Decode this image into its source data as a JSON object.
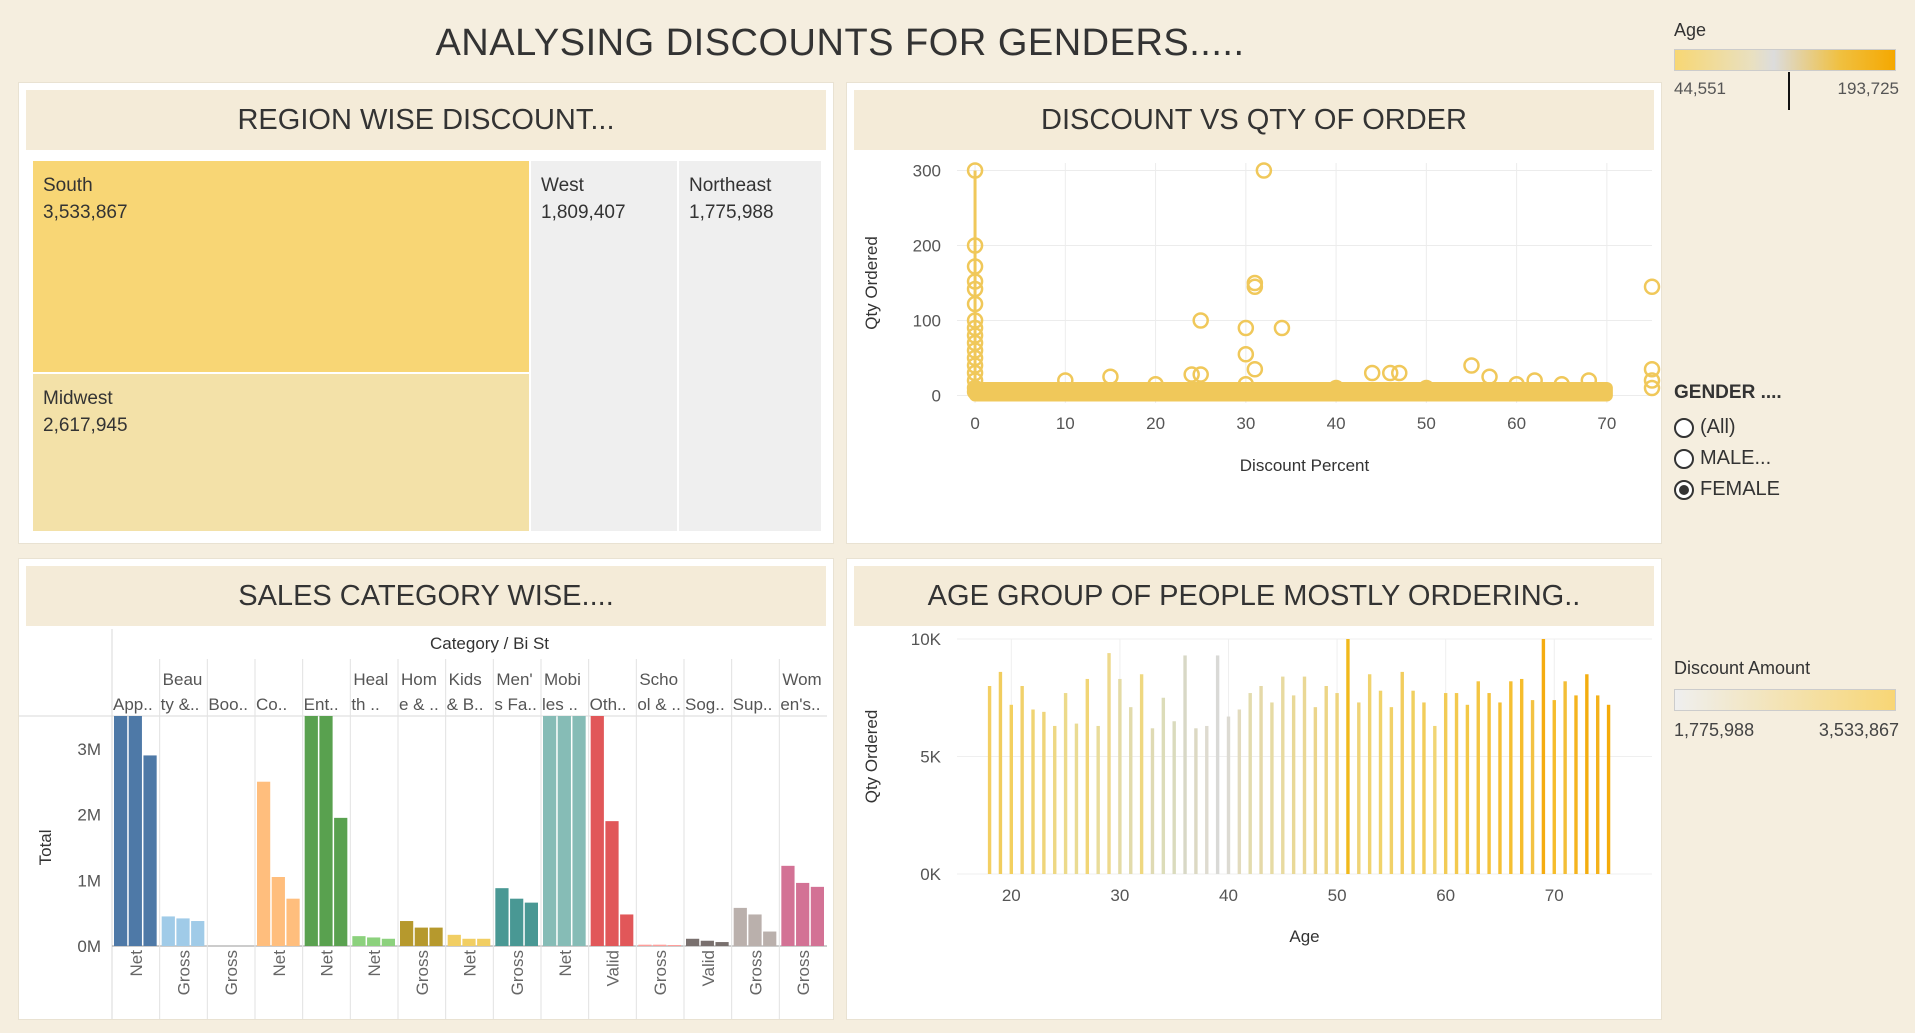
{
  "dashboard": {
    "title": "ANALYSING DISCOUNTS FOR GENDERS....."
  },
  "region_panel": {
    "title": "REGION WISE DISCOUNT...",
    "tiles": [
      {
        "name": "South",
        "value": "3,533,867",
        "color": "#f8d675"
      },
      {
        "name": "Midwest",
        "value": "2,617,945",
        "color": "#f3e1a8"
      },
      {
        "name": "West",
        "value": "1,809,407",
        "color": "#efefef"
      },
      {
        "name": "Northeast",
        "value": "1,775,988",
        "color": "#efefef"
      }
    ]
  },
  "scatter_panel": {
    "title": "DISCOUNT VS QTY OF ORDER",
    "chart_data": {
      "type": "scatter",
      "xlabel": "Discount Percent",
      "ylabel": "Qty Ordered",
      "xlim": [
        -2,
        75
      ],
      "ylim": [
        -10,
        310
      ],
      "xticks": [
        0,
        10,
        20,
        30,
        40,
        50,
        60,
        70
      ],
      "yticks": [
        0,
        100,
        200,
        300
      ],
      "grid": true,
      "color": "#f0c85a",
      "points": [
        [
          0,
          300
        ],
        [
          0,
          200
        ],
        [
          0,
          172
        ],
        [
          0,
          152
        ],
        [
          0,
          142
        ],
        [
          0,
          122
        ],
        [
          0,
          100
        ],
        [
          0,
          90
        ],
        [
          0,
          80
        ],
        [
          0,
          70
        ],
        [
          0,
          60
        ],
        [
          0,
          50
        ],
        [
          0,
          40
        ],
        [
          0,
          30
        ],
        [
          0,
          20
        ],
        [
          0,
          10
        ],
        [
          0,
          5
        ],
        [
          32,
          300
        ],
        [
          10,
          20
        ],
        [
          15,
          25
        ],
        [
          20,
          15
        ],
        [
          25,
          100
        ],
        [
          24,
          28
        ],
        [
          25,
          28
        ],
        [
          30,
          55
        ],
        [
          30,
          15
        ],
        [
          31,
          150
        ],
        [
          31,
          145
        ],
        [
          30,
          90
        ],
        [
          31,
          35
        ],
        [
          34,
          90
        ],
        [
          40,
          10
        ],
        [
          44,
          30
        ],
        [
          46,
          30
        ],
        [
          47,
          30
        ],
        [
          50,
          10
        ],
        [
          55,
          40
        ],
        [
          57,
          25
        ],
        [
          60,
          15
        ],
        [
          62,
          20
        ],
        [
          65,
          15
        ],
        [
          68,
          20
        ],
        [
          75,
          145
        ],
        [
          75,
          35
        ],
        [
          75,
          20
        ],
        [
          75,
          10
        ]
      ],
      "dense_band": {
        "x_from": 0,
        "x_to": 70,
        "y_from": 0,
        "y_to": 10
      }
    }
  },
  "category_panel": {
    "title": "SALES CATEGORY WISE....",
    "chart_data": {
      "type": "bar",
      "header_title": "Category / Bi St",
      "ylabel": "Total",
      "yticks": [
        "3M",
        "2M",
        "1M",
        "0M"
      ],
      "ylim": [
        0,
        3500000
      ],
      "categories": [
        {
          "label1": "",
          "label2": "App..",
          "color": "#4e79a7",
          "status": "Net",
          "values": [
            3500000,
            3500000,
            2900000
          ]
        },
        {
          "label1": "Beau",
          "label2": "ty &..",
          "color": "#a0cbe8",
          "status": "Gross",
          "values": [
            450000,
            420000,
            380000
          ]
        },
        {
          "label1": "",
          "label2": "Boo..",
          "color": "#a0cbe8",
          "status": "Gross",
          "values": [
            0,
            0,
            0
          ]
        },
        {
          "label1": "",
          "label2": "Co..",
          "color": "#ffbe7d",
          "status": "Net",
          "values": [
            2500000,
            1050000,
            720000
          ]
        },
        {
          "label1": "",
          "label2": "Ent..",
          "color": "#59a14f",
          "status": "Net",
          "values": [
            3500000,
            3500000,
            1950000
          ]
        },
        {
          "label1": "Heal",
          "label2": "th ..",
          "color": "#8cd17d",
          "status": "Net",
          "values": [
            150000,
            130000,
            110000
          ]
        },
        {
          "label1": "Hom",
          "label2": "e & ..",
          "color": "#b6992d",
          "status": "Gross",
          "values": [
            380000,
            280000,
            280000
          ]
        },
        {
          "label1": "Kids",
          "label2": "& B..",
          "color": "#f1ce63",
          "status": "Net",
          "values": [
            170000,
            110000,
            110000
          ]
        },
        {
          "label1": "Men'",
          "label2": "s Fa..",
          "color": "#499894",
          "status": "Gross",
          "values": [
            880000,
            720000,
            660000
          ]
        },
        {
          "label1": "Mobi",
          "label2": "les ..",
          "color": "#86bcb6",
          "status": "Net",
          "values": [
            3500000,
            3500000,
            3500000
          ]
        },
        {
          "label1": "",
          "label2": "Oth..",
          "color": "#e15759",
          "status": "Valid",
          "values": [
            3500000,
            1900000,
            480000
          ]
        },
        {
          "label1": "Scho",
          "label2": "ol & ..",
          "color": "#ff9d9a",
          "status": "Gross",
          "values": [
            20000,
            20000,
            15000
          ]
        },
        {
          "label1": "",
          "label2": "Sog..",
          "color": "#79706e",
          "status": "Valid",
          "values": [
            110000,
            80000,
            60000
          ]
        },
        {
          "label1": "",
          "label2": "Sup..",
          "color": "#bab0ac",
          "status": "Gross",
          "values": [
            580000,
            480000,
            220000
          ]
        },
        {
          "label1": "Wom",
          "label2": "en's..",
          "color": "#d37295",
          "status": "Gross",
          "values": [
            1220000,
            960000,
            900000
          ]
        }
      ]
    }
  },
  "age_panel": {
    "title": "AGE GROUP OF PEOPLE MOSTLY ORDERING..",
    "chart_data": {
      "type": "bar",
      "xlabel": "Age",
      "ylabel": "Qty Ordered",
      "xlim": [
        15,
        79
      ],
      "ylim": [
        0,
        10000
      ],
      "xticks": [
        20,
        30,
        40,
        50,
        60,
        70
      ],
      "yticks": [
        {
          "v": 10000,
          "t": "10K"
        },
        {
          "v": 5000,
          "t": "5K"
        },
        {
          "v": 0,
          "t": "0K"
        }
      ],
      "ages": [
        18,
        19,
        20,
        21,
        22,
        23,
        24,
        25,
        26,
        27,
        28,
        29,
        30,
        31,
        32,
        33,
        34,
        35,
        36,
        37,
        38,
        39,
        40,
        41,
        42,
        43,
        44,
        45,
        46,
        47,
        48,
        49,
        50,
        51,
        52,
        53,
        54,
        55,
        56,
        57,
        58,
        59,
        60,
        61,
        62,
        63,
        64,
        65,
        66,
        67,
        68,
        69,
        70,
        71,
        72,
        73,
        74,
        75
      ],
      "values": [
        8000,
        8600,
        7200,
        8000,
        7000,
        6900,
        6300,
        7700,
        6400,
        8300,
        6300,
        9400,
        8300,
        7100,
        8500,
        6200,
        7500,
        6500,
        9300,
        6200,
        6300,
        9300,
        6700,
        7000,
        7700,
        8000,
        7300,
        8400,
        7600,
        8400,
        7100,
        8000,
        7700,
        10000,
        7300,
        8500,
        7800,
        7100,
        8600,
        7800,
        7300,
        6300,
        7700,
        7700,
        7200,
        8200,
        7700,
        7300,
        8200,
        8300,
        7400,
        10000,
        7400,
        8200,
        7600,
        8500,
        7600,
        7200
      ],
      "colors": [
        "#f3cf63",
        "#f1cd5e",
        "#f3d05f",
        "#f1d16b",
        "#f0d473",
        "#efd57a",
        "#eed883",
        "#ecda8a",
        "#eadb92",
        "#f1d575",
        "#e9dc9a",
        "#eed98c",
        "#e4dba5",
        "#e2dbab",
        "#efd880",
        "#dfdab3",
        "#dcdcb9",
        "#dadbbd",
        "#d8d8c6",
        "#dcd9c3",
        "#dedbd0",
        "#d9d9d6",
        "#dcdad2",
        "#e2dbbe",
        "#e3dcae",
        "#e5d9a8",
        "#e6dba4",
        "#e8daa0",
        "#e9d998",
        "#ead895",
        "#ebd58b",
        "#ecd585",
        "#eed47e",
        "#f1b91c",
        "#efd377",
        "#f0d36f",
        "#f1d36a",
        "#f1d168",
        "#f2cd5e",
        "#f0d060",
        "#f2cd5a",
        "#f1d574",
        "#f2cb55",
        "#f3c94e",
        "#f3c846",
        "#f4c542",
        "#f4c23d",
        "#f5c036",
        "#f5bf32",
        "#f6bd2c",
        "#f3c243",
        "#f5ac10",
        "#f6bd2b",
        "#f3be36",
        "#f5b41e",
        "#f3ad0f",
        "#f4b21b",
        "#f5ab0a"
      ]
    }
  },
  "age_legend": {
    "title": "Age",
    "min": "44,551",
    "max": "193,725"
  },
  "gender_filter": {
    "title": "GENDER ....",
    "options": [
      {
        "label": "(All)",
        "selected": false
      },
      {
        "label": "MALE...",
        "selected": false
      },
      {
        "label": "FEMALE",
        "selected": true
      }
    ]
  },
  "discount_legend": {
    "title": "Discount Amount",
    "min": "1,775,988",
    "max": "3,533,867"
  }
}
